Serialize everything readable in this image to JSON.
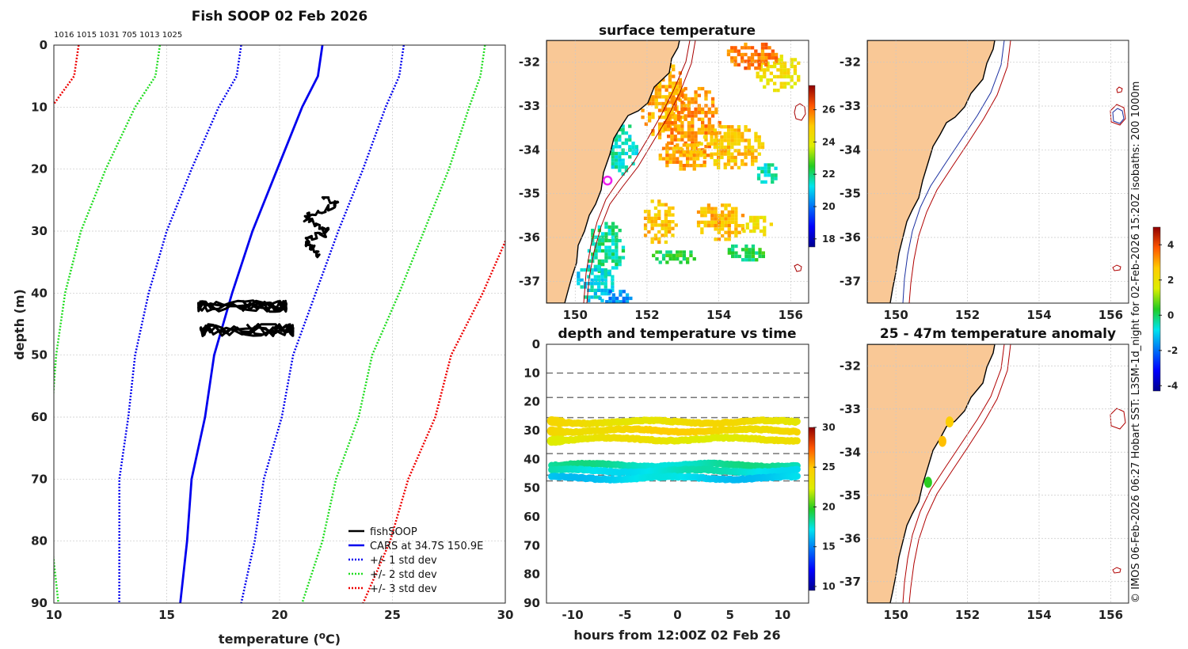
{
  "chart_data": [
    {
      "id": "profile",
      "type": "line",
      "title": "Fish SOOP 02 Feb 2026",
      "subtitle": "1016 1015 1031 705 1013 1025",
      "xlabel": "temperature (°C)",
      "ylabel": "depth (m)",
      "xlim": [
        10,
        30
      ],
      "ylim": [
        0,
        90
      ],
      "y_reversed": true,
      "xticks": [
        10,
        15,
        20,
        25,
        30
      ],
      "yticks": [
        0,
        10,
        20,
        30,
        40,
        50,
        60,
        70,
        80,
        90
      ],
      "grid": true,
      "legend_position": "bottom-right",
      "depths": [
        0,
        5,
        10,
        20,
        30,
        40,
        50,
        60,
        70,
        80,
        90
      ],
      "mean": [
        21.9,
        21.7,
        21.0,
        19.9,
        18.8,
        17.9,
        17.1,
        16.7,
        16.1,
        15.9,
        15.6
      ],
      "std": [
        3.6,
        3.6,
        3.7,
        3.8,
        3.8,
        3.7,
        3.5,
        3.4,
        3.2,
        3.0,
        2.7
      ],
      "series": [
        {
          "name": "fishSOOP",
          "color": "#000000",
          "style": "solid"
        },
        {
          "name": "CARS at 34.7S 150.9E",
          "color": "#0000ee",
          "style": "solid"
        },
        {
          "name": "+/- 1 std dev",
          "color": "#0000ee",
          "style": "dotted"
        },
        {
          "name": "+/- 2 std dev",
          "color": "#22dd22",
          "style": "dotted"
        },
        {
          "name": "+/- 3 std dev",
          "color": "#ee0000",
          "style": "dotted"
        }
      ],
      "fishsoop_segments": [
        {
          "depth_range": [
            24.7,
            33.9
          ],
          "temp_range": [
            21.2,
            22.6
          ]
        },
        {
          "depth_range": [
            41.2,
            43.0
          ],
          "temp_range": [
            16.4,
            20.3
          ]
        },
        {
          "depth_range": [
            45.0,
            47.0
          ],
          "temp_range": [
            16.5,
            20.6
          ]
        }
      ]
    },
    {
      "id": "sst_map",
      "type": "heatmap",
      "title": "surface temperature",
      "xlim": [
        149.2,
        156.5
      ],
      "ylim": [
        -37.5,
        -31.5
      ],
      "xticks": [
        150,
        152,
        154,
        156
      ],
      "yticks": [
        -32,
        -33,
        -34,
        -35,
        -36,
        -37
      ],
      "colorbar_range": [
        17.5,
        27.5
      ],
      "colorbar_ticks": [
        18,
        20,
        22,
        24,
        26
      ],
      "marker": {
        "lon": 150.9,
        "lat": -34.7,
        "color": "#ee22ee"
      }
    },
    {
      "id": "isobath_map",
      "type": "heatmap",
      "title": "",
      "xlim": [
        149.2,
        156.5
      ],
      "ylim": [
        -37.5,
        -31.5
      ],
      "xticks": [
        150,
        152,
        154,
        156
      ],
      "yticks": [
        -32,
        -33,
        -34,
        -35,
        -36,
        -37
      ],
      "isobaths_m": [
        200,
        1000
      ]
    },
    {
      "id": "depth_time",
      "type": "scatter",
      "title": "depth and temperature vs time",
      "xlabel": "hours from 12:00Z 02 Feb 26",
      "xlim": [
        -12.5,
        12.5
      ],
      "ylim": [
        0,
        90
      ],
      "y_reversed": true,
      "xticks": [
        -10,
        -5,
        0,
        5,
        10
      ],
      "yticks": [
        0,
        10,
        20,
        30,
        40,
        50,
        60,
        70,
        80,
        90
      ],
      "bin_lines": [
        10,
        18.5,
        25.5,
        38,
        45.5,
        47.5
      ],
      "colorbar_range": [
        9.5,
        30
      ],
      "colorbar_ticks": [
        10,
        15,
        20,
        25,
        30
      ],
      "tracks": [
        {
          "depth": 27,
          "temp": 23.5
        },
        {
          "depth": 30,
          "temp": 24.2
        },
        {
          "depth": 33,
          "temp": 23.0
        },
        {
          "depth": 42,
          "temp": 18.0
        },
        {
          "depth": 44,
          "temp": 17.5
        },
        {
          "depth": 46.5,
          "temp": 16.8
        }
      ]
    },
    {
      "id": "anomaly_map",
      "type": "scatter",
      "title": "25 - 47m temperature anomaly",
      "xlim": [
        149.2,
        156.5
      ],
      "ylim": [
        -37.5,
        -31.5
      ],
      "xticks": [
        150,
        152,
        154,
        156
      ],
      "yticks": [
        -32,
        -33,
        -34,
        -35,
        -36,
        -37
      ],
      "colorbar_range": [
        -4.3,
        5
      ],
      "colorbar_ticks": [
        -4,
        -2,
        0,
        2,
        4
      ],
      "points": [
        {
          "lon": 151.5,
          "lat": -33.3,
          "anomaly": 2.6
        },
        {
          "lon": 151.3,
          "lat": -33.75,
          "anomaly": 2.8
        },
        {
          "lon": 150.9,
          "lat": -34.7,
          "anomaly": 0.4
        }
      ]
    }
  ],
  "side_caption": "© IMOS 06-Feb-2026 06:27 Hobart SST: L3SM-1d_night for 02-Feb-2026 15:20Z isobaths: 200  1000m",
  "colors": {
    "land": "#f9c896",
    "coast": "#000000"
  }
}
